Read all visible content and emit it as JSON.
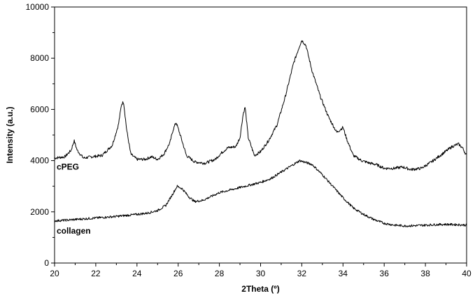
{
  "chart_data": {
    "type": "line",
    "xlabel": "2Theta (º)",
    "ylabel": "Intensity (a.u.)",
    "xlim": [
      20,
      40
    ],
    "ylim": [
      0,
      10000
    ],
    "x_ticks": [
      20,
      22,
      24,
      26,
      28,
      30,
      32,
      34,
      36,
      38,
      40
    ],
    "y_ticks": [
      0,
      2000,
      4000,
      6000,
      8000,
      10000
    ],
    "grid": false,
    "legend": "none",
    "series": [
      {
        "name": "cPEG",
        "x": [
          20.0,
          20.5,
          20.8,
          20.95,
          21.1,
          21.4,
          21.8,
          22.3,
          22.8,
          23.1,
          23.25,
          23.35,
          23.5,
          23.7,
          24.0,
          24.4,
          24.7,
          25.0,
          25.3,
          25.6,
          25.75,
          25.9,
          26.1,
          26.4,
          26.8,
          27.3,
          27.8,
          28.1,
          28.4,
          28.8,
          29.0,
          29.15,
          29.25,
          29.4,
          29.7,
          30.0,
          30.4,
          30.8,
          31.2,
          31.6,
          31.9,
          32.0,
          32.2,
          32.5,
          32.9,
          33.3,
          33.7,
          34.0,
          34.2,
          34.5,
          34.9,
          35.3,
          35.6,
          36.0,
          36.5,
          36.9,
          37.3,
          37.8,
          38.3,
          38.8,
          39.3,
          39.6,
          39.8,
          40.0
        ],
        "y": [
          4100,
          4150,
          4400,
          4780,
          4400,
          4100,
          4150,
          4200,
          4600,
          5400,
          6200,
          6300,
          5200,
          4250,
          4050,
          4050,
          4150,
          4050,
          4250,
          4700,
          5200,
          5500,
          5000,
          4200,
          3950,
          3900,
          4050,
          4300,
          4500,
          4550,
          4900,
          5800,
          6100,
          4900,
          4200,
          4350,
          4800,
          5400,
          6500,
          7800,
          8500,
          8700,
          8500,
          7500,
          6500,
          5700,
          5100,
          5300,
          4800,
          4200,
          4000,
          3900,
          3850,
          3700,
          3700,
          3750,
          3650,
          3700,
          3950,
          4250,
          4550,
          4650,
          4500,
          4200
        ],
        "label_text": "cPEG",
        "label_x": 20.1,
        "label_y": 3650
      },
      {
        "name": "collagen",
        "x": [
          20.0,
          20.5,
          21.0,
          21.5,
          22.0,
          22.5,
          23.0,
          23.5,
          24.0,
          24.5,
          25.0,
          25.4,
          25.7,
          25.95,
          26.2,
          26.5,
          26.8,
          27.2,
          27.6,
          28.0,
          28.5,
          29.0,
          29.5,
          30.0,
          30.5,
          31.0,
          31.5,
          31.9,
          32.1,
          32.5,
          33.0,
          33.5,
          34.0,
          34.5,
          35.0,
          35.5,
          36.0,
          36.5,
          37.0,
          37.5,
          38.0,
          38.5,
          39.0,
          39.5,
          40.0
        ],
        "y": [
          1650,
          1670,
          1700,
          1730,
          1760,
          1790,
          1820,
          1860,
          1900,
          1950,
          2050,
          2250,
          2650,
          3000,
          2900,
          2600,
          2400,
          2450,
          2600,
          2750,
          2850,
          2950,
          3050,
          3150,
          3300,
          3550,
          3800,
          4000,
          3950,
          3850,
          3450,
          3000,
          2550,
          2150,
          1900,
          1700,
          1550,
          1480,
          1450,
          1460,
          1480,
          1500,
          1510,
          1500,
          1480
        ],
        "label_text": "collagen",
        "label_x": 20.1,
        "label_y": 1150
      }
    ]
  }
}
